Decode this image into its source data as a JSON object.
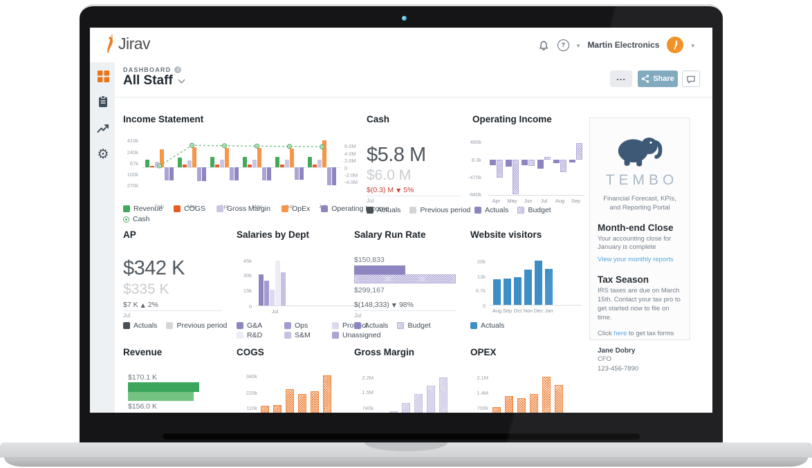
{
  "window": {
    "logo": "Jirav",
    "account": "Martin Electronics"
  },
  "nav": {
    "dashboard_label": "DASHBOARD",
    "page_title": "All Staff",
    "more_label": "...",
    "share_label": "Share"
  },
  "sidebar": {
    "items": [
      {
        "name": "dashboard",
        "icon": "grid-icon",
        "active": true
      },
      {
        "name": "plans",
        "icon": "clipboard-icon",
        "active": false
      },
      {
        "name": "trends",
        "icon": "trend-icon",
        "active": false
      },
      {
        "name": "settings",
        "icon": "gear-icon",
        "active": false
      }
    ]
  },
  "colors": {
    "accent_orange": "#e8751a",
    "share_button": "#7ba6bb",
    "link_blue": "#4aa3d8",
    "negative_red": "#bf4136"
  },
  "cards": {
    "income_statement": {
      "title": "Income Statement",
      "legend_rows": [
        [
          {
            "label": "Revenue",
            "color": "#43a95c"
          },
          {
            "label": "COGS",
            "color": "#e35f22"
          },
          {
            "label": "Gross Margin",
            "color": "#c9c6e3"
          },
          {
            "label": "OpEx",
            "color": "#f79548"
          },
          {
            "label": "Operating Income",
            "color": "#8d85c0"
          }
        ],
        [
          {
            "label": "Cash",
            "color": "#53ad65",
            "marker": "ring"
          }
        ]
      ]
    },
    "cash": {
      "title": "Cash",
      "primary": "$5.8 M",
      "secondary": "$6.0 M",
      "delta": "$(0.3) M",
      "delta_dir": "▼",
      "delta_pct": "5%",
      "period": "Jul",
      "legend": [
        {
          "label": "Actuals",
          "color": "#4a4f54"
        },
        {
          "label": "Previous period",
          "color": "#d3d5d7"
        }
      ]
    },
    "operating_income": {
      "title": "Operating Income",
      "legend": [
        {
          "label": "Actuals",
          "color": "#8d85c0"
        },
        {
          "label": "Budget",
          "color": "#b4aeda",
          "pattern": true
        }
      ]
    },
    "ap": {
      "title": "AP",
      "primary": "$342 K",
      "secondary": "$335 K",
      "delta": "$7 K",
      "delta_dir": "▲",
      "delta_pct": "2%",
      "period": "Jul",
      "legend": [
        {
          "label": "Actuals",
          "color": "#4a4f54"
        },
        {
          "label": "Previous period",
          "color": "#d3d5d7"
        }
      ]
    },
    "salaries": {
      "title": "Salaries by Dept",
      "period": "Jul",
      "legend_rows": [
        [
          {
            "label": "G&A",
            "color": "#8d85c0"
          },
          {
            "label": "Ops",
            "color": "#a29bd0"
          },
          {
            "label": "Product",
            "color": "#dcd9ef"
          }
        ],
        [
          {
            "label": "R&D",
            "color": "#edecf7"
          },
          {
            "label": "S&M",
            "color": "#c5c1e2"
          },
          {
            "label": "Unassigned",
            "color": "#aba4d4"
          }
        ]
      ]
    },
    "salary_run_rate": {
      "title": "Salary Run Rate",
      "actual_label": "$150,833",
      "budget_label": "$299,167",
      "delta": "$(148,333)",
      "delta_dir": "▼",
      "delta_pct": "98%",
      "period": "Jul",
      "legend": [
        {
          "label": "Actuals",
          "color": "#8d85c0"
        },
        {
          "label": "Budget",
          "color": "#b4aeda",
          "pattern": true
        }
      ]
    },
    "website_visitors": {
      "title": "Website visitors",
      "legend": [
        {
          "label": "Actuals",
          "color": "#3d8ec5"
        }
      ]
    },
    "revenue": {
      "title": "Revenue",
      "actual_label": "$170.1 K",
      "previous_label": "$156.0 K"
    },
    "cogs": {
      "title": "COGS"
    },
    "gross_margin": {
      "title": "Gross Margin"
    },
    "opex": {
      "title": "OPEX"
    },
    "tembo": {
      "brand": "TEMBO",
      "tagline": "Financial Forecast, KPIs, and Reporting Portal",
      "section1_title": "Month-end Close",
      "section1_body": "Your accounting close for January is complete",
      "section1_link": "View your monthly reports",
      "section2_title": "Tax Season",
      "section2_body": "IRS taxes are due on March 15th. Contact your tax pro to get started now to file on time.",
      "section2_line2_prefix": "Click ",
      "section2_line2_link": "here",
      "section2_line2_suffix": " to get tax forms",
      "contact_name": "Jane Dobry",
      "contact_role": "CFO",
      "contact_phone": "123-456-7890"
    }
  },
  "chart_data": {
    "income_statement": {
      "type": "bar",
      "categories": [
        "Feb",
        "Mar",
        "Apr",
        "May",
        "Jun",
        "Jul"
      ],
      "unit": "thousands USD (left axis), millions USD (right axis)",
      "series": [
        {
          "name": "Revenue",
          "color": "#43a95c",
          "values": [
            120,
            150,
            155,
            155,
            158,
            160
          ]
        },
        {
          "name": "COGS",
          "color": "#e35f22",
          "values": [
            25,
            40,
            42,
            42,
            43,
            45
          ]
        },
        {
          "name": "Gross Margin",
          "color": "#c9c6e3",
          "values": [
            85,
            105,
            110,
            112,
            115,
            120
          ]
        },
        {
          "name": "OpEx",
          "color": "#f79548",
          "values": [
            270,
            300,
            295,
            290,
            285,
            410
          ]
        },
        {
          "name": "Operating Income",
          "color": "#aba4d4",
          "values": [
            -200,
            -205,
            -200,
            -195,
            -190,
            -270
          ]
        },
        {
          "name": "Operating Income",
          "color": "#8d85c0",
          "values": [
            -200,
            -210,
            -200,
            -195,
            -190,
            -275
          ]
        }
      ],
      "line": {
        "name": "Cash",
        "color": "#6fc381",
        "axis": "right",
        "values": [
          0.4,
          6.1,
          6.0,
          5.9,
          5.8,
          5.7
        ]
      },
      "y_ticks_left": [
        {
          "v": 410,
          "label": "410k"
        },
        {
          "v": 240,
          "label": "240k"
        },
        {
          "v": 67,
          "label": "67k"
        },
        {
          "v": -100,
          "label": "100k"
        },
        {
          "v": -270,
          "label": "270k"
        }
      ],
      "y_ticks_right": [
        {
          "v": 6,
          "label": "6.0M"
        },
        {
          "v": 4,
          "label": "4.0M"
        },
        {
          "v": 2,
          "label": "2.0M"
        },
        {
          "v": 0,
          "label": "0"
        },
        {
          "v": -2,
          "label": "-2.0M"
        },
        {
          "v": -4,
          "label": "-4.0M"
        }
      ]
    },
    "operating_income": {
      "type": "bar",
      "categories": [
        "Apr",
        "May",
        "Jun",
        "Jul",
        "Aug",
        "Sep"
      ],
      "unit": "thousands USD",
      "series": [
        {
          "name": "Actuals",
          "color": "#8d85c0",
          "values": [
            -160,
            -197,
            -160,
            -250,
            -110,
            -90
          ]
        },
        {
          "name": "Budget",
          "color": "#b4aeda",
          "pattern": true,
          "values": [
            -500,
            -940,
            -170,
            60,
            -350,
            440
          ]
        }
      ],
      "y_ticks": [
        {
          "v": 480,
          "label": "480k"
        },
        {
          "v": 8.3,
          "label": "8.3k"
        },
        {
          "v": -470,
          "label": "-470k"
        },
        {
          "v": -940,
          "label": "-940k"
        }
      ]
    },
    "salaries": {
      "type": "bar",
      "categories": [
        "Jul"
      ],
      "unit": "thousands USD",
      "series": [
        {
          "name": "G&A",
          "color": "#8d85c0",
          "values": [
            30.7
          ]
        },
        {
          "name": "Ops",
          "color": "#a29bd0",
          "values": [
            24.5
          ]
        },
        {
          "name": "Product",
          "color": "#dcd9ef",
          "values": [
            15.7
          ]
        },
        {
          "name": "R&D",
          "color": "#edecf7",
          "values": [
            44.3
          ]
        },
        {
          "name": "S&M",
          "color": "#c5c1e2",
          "values": [
            32.7
          ]
        },
        {
          "name": "Unassigned",
          "color": "#aba4d4",
          "values": [
            0
          ]
        }
      ],
      "y_ticks": [
        {
          "v": 45,
          "label": "45k"
        },
        {
          "v": 30,
          "label": "30k"
        },
        {
          "v": 15,
          "label": "15k"
        },
        {
          "v": 0,
          "label": "0"
        }
      ]
    },
    "salary_run_rate": {
      "type": "bar",
      "actual": 150833,
      "budget": 299167
    },
    "website_visitors": {
      "type": "bar",
      "categories": [
        "Aug",
        "Sep",
        "Oct",
        "Nov",
        "Dec",
        "Jan"
      ],
      "unit": "thousands of visitors",
      "series": [
        {
          "name": "Actuals",
          "color": "#3d8ec5",
          "values": [
            11.5,
            12,
            12.5,
            16,
            20,
            16.3
          ]
        }
      ],
      "y_ticks": [
        {
          "v": 20,
          "label": "20k"
        },
        {
          "v": 13,
          "label": "13k"
        },
        {
          "v": 6.7,
          "label": "6.7k"
        },
        {
          "v": 0,
          "label": "0"
        }
      ]
    },
    "revenue": {
      "type": "bar",
      "actual": 170.1,
      "previous": 156.0
    },
    "cogs": {
      "type": "bar",
      "unit": "thousands USD",
      "series": [
        {
          "name": "COGS",
          "color": "#ef8640",
          "pattern": true,
          "values": [
            120,
            125,
            240,
            205,
            225,
            340
          ]
        }
      ],
      "y_ticks": [
        {
          "v": 340,
          "label": "340k"
        },
        {
          "v": 220,
          "label": "220k"
        },
        {
          "v": 110,
          "label": "110k"
        }
      ]
    },
    "gross_margin": {
      "type": "bar",
      "unit": "millions USD",
      "series": [
        {
          "name": "Gross Margin",
          "color": "#c6c2e2",
          "pattern": true,
          "values": [
            0.4,
            0.55,
            0.95,
            1.38,
            1.78,
            2.2
          ]
        }
      ],
      "y_ticks": [
        {
          "v": 2.2,
          "label": "2.2M"
        },
        {
          "v": 1.5,
          "label": "1.5M"
        },
        {
          "v": 0.74,
          "label": "740k"
        }
      ]
    },
    "opex": {
      "type": "bar",
      "unit": "millions USD",
      "series": [
        {
          "name": "OPEX",
          "color": "#ef8640",
          "pattern": true,
          "values": [
            0.7,
            1.2,
            1.1,
            1.32,
            2.1,
            1.73
          ]
        }
      ],
      "y_ticks": [
        {
          "v": 2.1,
          "label": "2.1M"
        },
        {
          "v": 1.4,
          "label": "1.4M"
        },
        {
          "v": 0.7,
          "label": "700k"
        }
      ]
    }
  }
}
